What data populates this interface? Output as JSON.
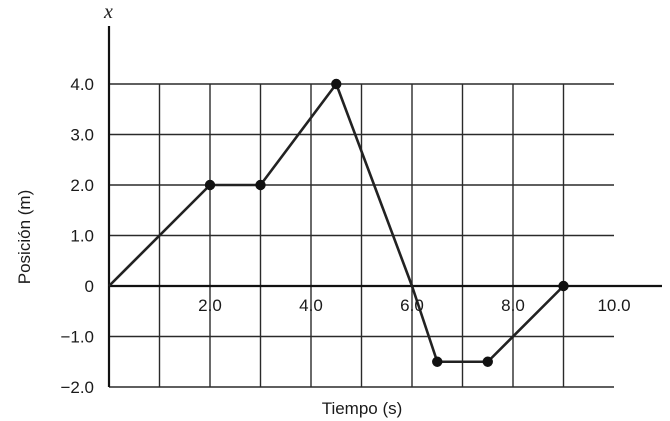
{
  "chart_data": {
    "type": "line",
    "xlabel": "Tiempo (s)",
    "ylabel": "Posición (m)",
    "x_axis_symbol": "x",
    "xlim": [
      0,
      11
    ],
    "ylim": [
      -2.0,
      4.0
    ],
    "grid": true,
    "x_ticks": [
      2,
      4,
      6,
      8,
      10
    ],
    "x_tick_labels": [
      "2.0",
      "4.0",
      "6.0",
      "8.0",
      "10.0"
    ],
    "y_ticks": [
      4,
      3,
      2,
      1,
      0,
      -1,
      -2
    ],
    "y_tick_labels": [
      "4.0",
      "3.0",
      "2.0",
      "1.0",
      "0",
      "−1.0",
      "−2.0"
    ],
    "series": [
      {
        "x": [
          0,
          2.0,
          3.0,
          4.5,
          6.0,
          6.5,
          7.5,
          9.0
        ],
        "y": [
          0,
          2.0,
          2.0,
          4.0,
          0,
          -1.5,
          -1.5,
          0
        ],
        "markers": [
          false,
          true,
          true,
          true,
          false,
          true,
          true,
          true
        ]
      }
    ]
  }
}
